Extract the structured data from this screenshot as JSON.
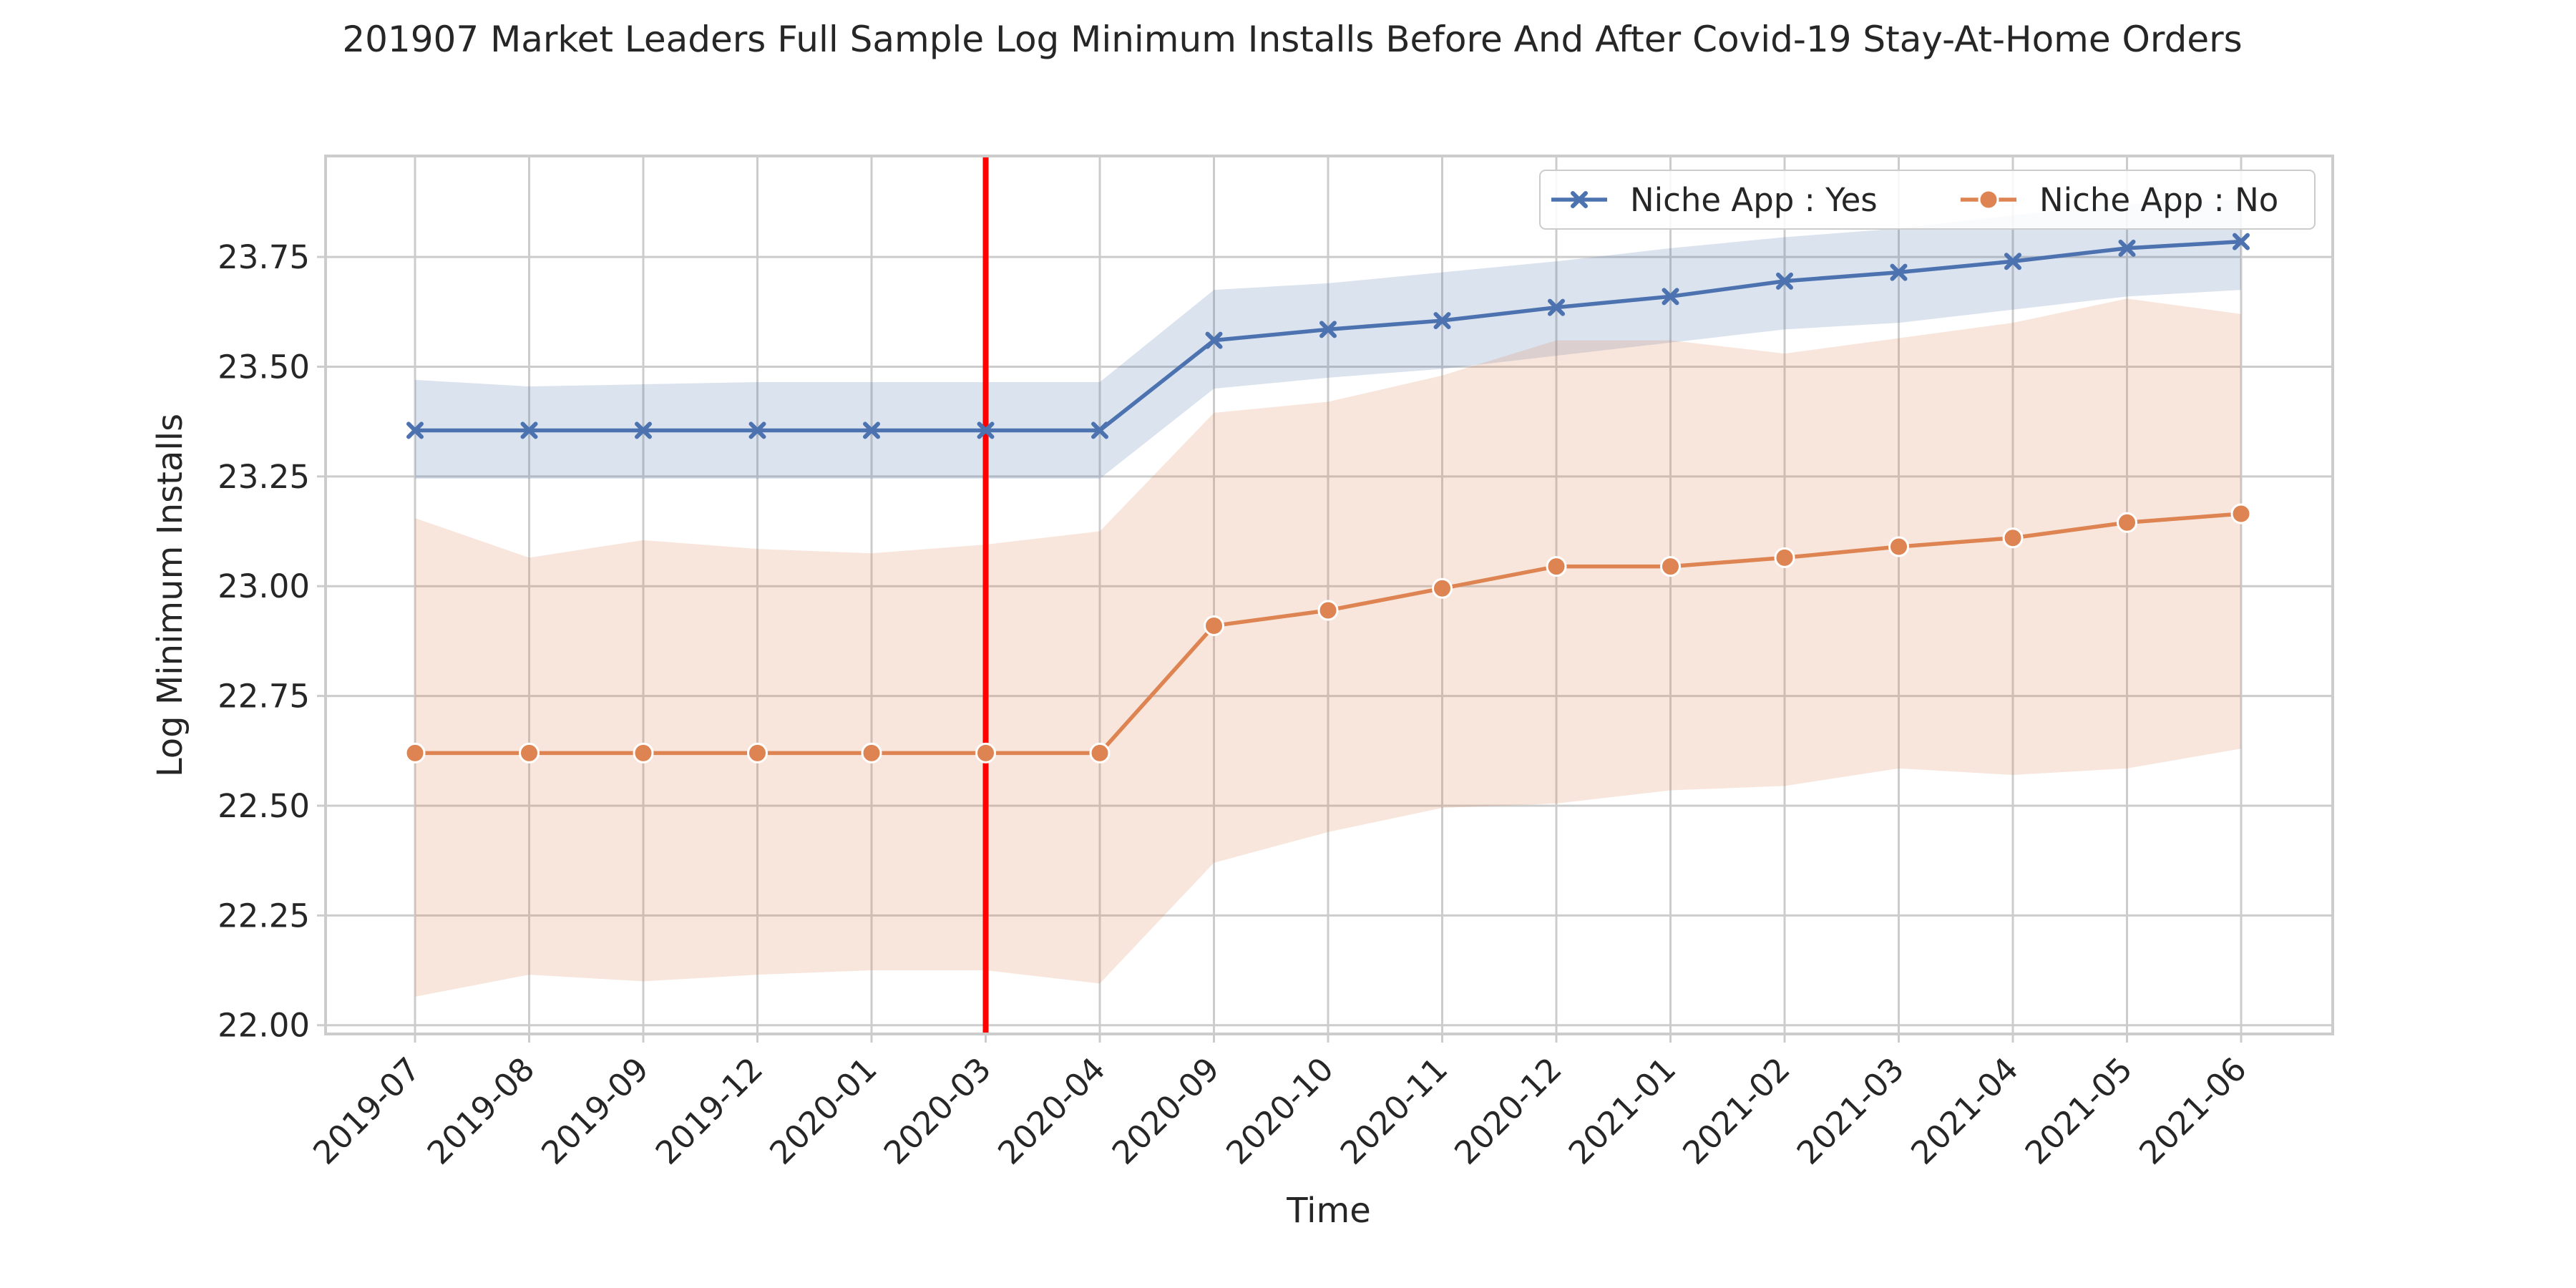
{
  "chart_data": {
    "type": "line",
    "title": "201907 Market Leaders Full Sample Log Minimum Installs Before And After Covid-19 Stay-At-Home Orders",
    "xlabel": "Time",
    "ylabel": "Log Minimum Installs",
    "categories": [
      "2019-07",
      "2019-08",
      "2019-09",
      "2019-12",
      "2020-01",
      "2020-03",
      "2020-04",
      "2020-09",
      "2020-10",
      "2020-11",
      "2020-12",
      "2021-01",
      "2021-02",
      "2021-03",
      "2021-04",
      "2021-05",
      "2021-06"
    ],
    "ylim": [
      21.98,
      23.98
    ],
    "yticks": [
      "22.00",
      "22.25",
      "22.50",
      "22.75",
      "23.00",
      "23.25",
      "23.50",
      "23.75"
    ],
    "grid": true,
    "legend_position": "top-right",
    "vline": {
      "category": "2020-03",
      "color": "#ff0000"
    },
    "series": [
      {
        "name": "Niche App : Yes",
        "color": "#4c72b0",
        "marker": "x",
        "values": [
          23.355,
          23.355,
          23.355,
          23.355,
          23.355,
          23.355,
          23.355,
          23.56,
          23.585,
          23.605,
          23.635,
          23.66,
          23.695,
          23.715,
          23.74,
          23.77,
          23.785
        ],
        "ci_low": [
          23.245,
          23.245,
          23.245,
          23.245,
          23.245,
          23.245,
          23.245,
          23.45,
          23.475,
          23.495,
          23.525,
          23.555,
          23.585,
          23.6,
          23.63,
          23.66,
          23.675
        ],
        "ci_high": [
          23.47,
          23.455,
          23.46,
          23.465,
          23.465,
          23.465,
          23.465,
          23.675,
          23.69,
          23.715,
          23.74,
          23.77,
          23.795,
          23.815,
          23.845,
          23.87,
          23.88
        ]
      },
      {
        "name": "Niche App : No",
        "color": "#dd8452",
        "marker": "o",
        "values": [
          22.62,
          22.62,
          22.62,
          22.62,
          22.62,
          22.62,
          22.62,
          22.91,
          22.945,
          22.995,
          23.045,
          23.045,
          23.065,
          23.09,
          23.11,
          23.145,
          23.165
        ],
        "ci_low": [
          22.065,
          22.115,
          22.1,
          22.115,
          22.125,
          22.125,
          22.095,
          22.37,
          22.44,
          22.495,
          22.505,
          22.535,
          22.545,
          22.585,
          22.57,
          22.585,
          22.63
        ],
        "ci_high": [
          23.155,
          23.065,
          23.105,
          23.085,
          23.075,
          23.095,
          23.125,
          23.395,
          23.42,
          23.48,
          23.56,
          23.56,
          23.53,
          23.565,
          23.6,
          23.655,
          23.62
        ]
      }
    ]
  }
}
